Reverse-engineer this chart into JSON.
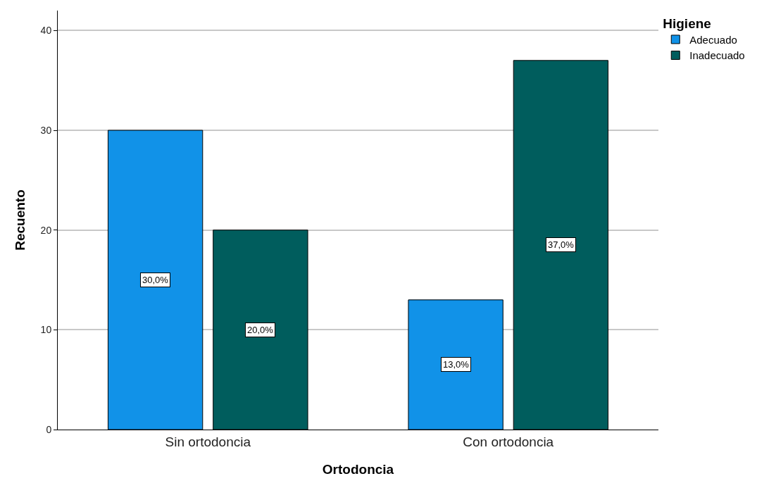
{
  "chart_data": {
    "type": "bar",
    "xlabel": "Ortodoncia",
    "ylabel": "Recuento",
    "legend_title": "Higiene",
    "categories": [
      "Sin ortodoncia",
      "Con ortodoncia"
    ],
    "series": [
      {
        "name": "Adecuado",
        "color": "#1192e8",
        "values": [
          30,
          13
        ],
        "value_labels": [
          "30,0%",
          "13,0%"
        ]
      },
      {
        "name": "Inadecuado",
        "color": "#005d5d",
        "values": [
          20,
          37
        ],
        "value_labels": [
          "20,0%",
          "37,0%"
        ]
      }
    ],
    "ylim": [
      0,
      42
    ],
    "yticks": [
      0,
      10,
      20,
      30,
      40
    ],
    "grid": "y",
    "legend": "top right"
  }
}
